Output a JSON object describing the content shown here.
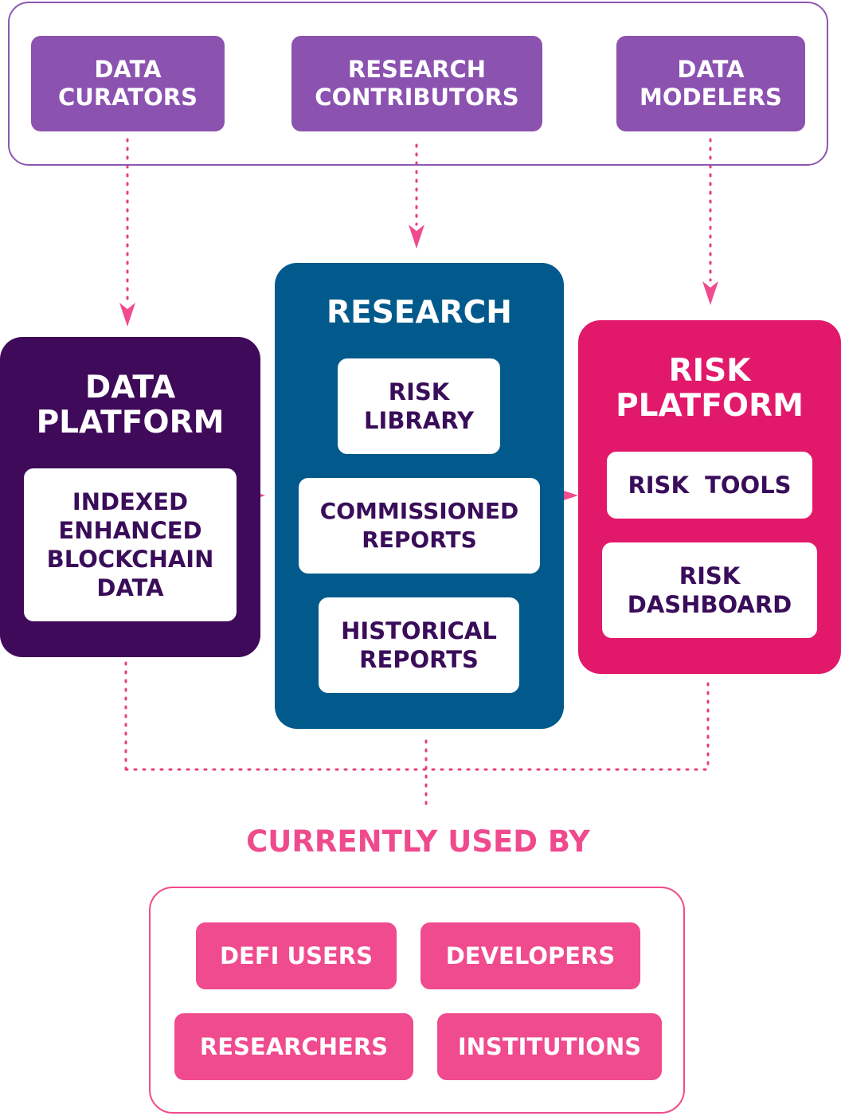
{
  "contributors": {
    "data_curators": "DATA\nCURATORS",
    "research_contributors": "RESEARCH\nCONTRIBUTORS",
    "data_modelers": "DATA\nMODELERS"
  },
  "data_platform": {
    "title": "DATA\nPLATFORM",
    "card": "INDEXED\nENHANCED\nBLOCKCHAIN\nDATA"
  },
  "research": {
    "title": "RESEARCH",
    "risk_library": "RISK\nLIBRARY",
    "commissioned_reports": "COMMISSIONED\nREPORTS",
    "historical_reports": "HISTORICAL\nREPORTS"
  },
  "risk_platform": {
    "title": "RISK\nPLATFORM",
    "risk_tools": "RISK  TOOLS",
    "risk_dashboard": "RISK\nDASHBOARD"
  },
  "used_by": {
    "title": "CURRENTLY USED BY",
    "defi_users": "DEFI USERS",
    "developers": "DEVELOPERS",
    "researchers": "RESEARCHERS",
    "institutions": "INSTITUTIONS"
  },
  "colors": {
    "contributor_purple": "#8b52b0",
    "data_platform": "#3f0a5a",
    "research": "#025a8c",
    "risk_platform": "#e2186a",
    "accent_pink": "#f04b8e",
    "card_text": "#3a0d5a"
  }
}
